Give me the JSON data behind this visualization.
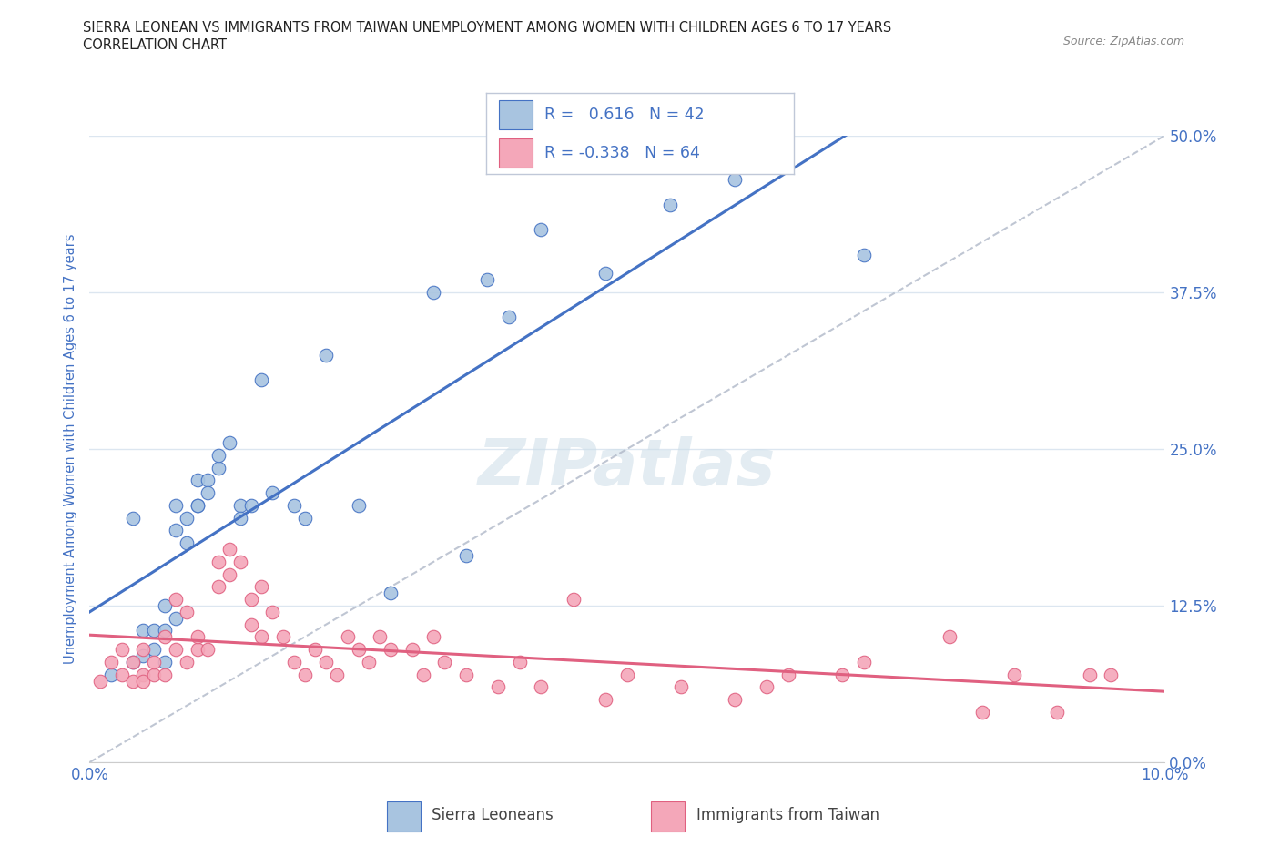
{
  "title_line1": "SIERRA LEONEAN VS IMMIGRANTS FROM TAIWAN UNEMPLOYMENT AMONG WOMEN WITH CHILDREN AGES 6 TO 17 YEARS",
  "title_line2": "CORRELATION CHART",
  "source": "Source: ZipAtlas.com",
  "ylabel": "Unemployment Among Women with Children Ages 6 to 17 years",
  "watermark": "ZIPatlas",
  "blue_R": 0.616,
  "blue_N": 42,
  "pink_R": -0.338,
  "pink_N": 64,
  "xlim": [
    0.0,
    0.1
  ],
  "ylim": [
    0.0,
    0.5
  ],
  "yticks": [
    0.0,
    0.125,
    0.25,
    0.375,
    0.5
  ],
  "ytick_labels": [
    "0.0%",
    "12.5%",
    "25.0%",
    "37.5%",
    "50.0%"
  ],
  "xticks": [
    0.0,
    0.02,
    0.04,
    0.06,
    0.08,
    0.1
  ],
  "xtick_labels": [
    "0.0%",
    "",
    "",
    "",
    "",
    "10.0%"
  ],
  "blue_color": "#a8c4e0",
  "blue_edge_color": "#4472c4",
  "pink_color": "#f4a7b9",
  "pink_edge_color": "#e06080",
  "blue_line_color": "#4472c4",
  "pink_line_color": "#e06080",
  "axis_label_color": "#4472c4",
  "grid_color": "#dce6f0",
  "diag_color": "#b0b8c8",
  "blue_scatter_x": [
    0.002,
    0.004,
    0.004,
    0.005,
    0.005,
    0.006,
    0.006,
    0.007,
    0.007,
    0.007,
    0.008,
    0.008,
    0.008,
    0.009,
    0.009,
    0.01,
    0.01,
    0.01,
    0.011,
    0.011,
    0.012,
    0.012,
    0.013,
    0.014,
    0.014,
    0.015,
    0.016,
    0.017,
    0.019,
    0.02,
    0.022,
    0.025,
    0.028,
    0.032,
    0.035,
    0.037,
    0.039,
    0.042,
    0.048,
    0.054,
    0.06,
    0.072
  ],
  "blue_scatter_y": [
    0.07,
    0.195,
    0.08,
    0.105,
    0.085,
    0.09,
    0.105,
    0.125,
    0.105,
    0.08,
    0.115,
    0.185,
    0.205,
    0.195,
    0.175,
    0.205,
    0.225,
    0.205,
    0.225,
    0.215,
    0.235,
    0.245,
    0.255,
    0.205,
    0.195,
    0.205,
    0.305,
    0.215,
    0.205,
    0.195,
    0.325,
    0.205,
    0.135,
    0.375,
    0.165,
    0.385,
    0.355,
    0.425,
    0.39,
    0.445,
    0.465,
    0.405
  ],
  "pink_scatter_x": [
    0.001,
    0.002,
    0.003,
    0.003,
    0.004,
    0.004,
    0.005,
    0.005,
    0.005,
    0.006,
    0.006,
    0.007,
    0.007,
    0.008,
    0.008,
    0.009,
    0.009,
    0.01,
    0.01,
    0.011,
    0.012,
    0.012,
    0.013,
    0.013,
    0.014,
    0.015,
    0.015,
    0.016,
    0.016,
    0.017,
    0.018,
    0.019,
    0.02,
    0.021,
    0.022,
    0.023,
    0.024,
    0.025,
    0.026,
    0.027,
    0.028,
    0.03,
    0.031,
    0.032,
    0.033,
    0.035,
    0.038,
    0.04,
    0.042,
    0.045,
    0.048,
    0.05,
    0.055,
    0.06,
    0.063,
    0.065,
    0.07,
    0.072,
    0.08,
    0.083,
    0.086,
    0.09,
    0.093,
    0.095
  ],
  "pink_scatter_y": [
    0.065,
    0.08,
    0.07,
    0.09,
    0.065,
    0.08,
    0.07,
    0.09,
    0.065,
    0.07,
    0.08,
    0.07,
    0.1,
    0.09,
    0.13,
    0.12,
    0.08,
    0.09,
    0.1,
    0.09,
    0.16,
    0.14,
    0.17,
    0.15,
    0.16,
    0.13,
    0.11,
    0.1,
    0.14,
    0.12,
    0.1,
    0.08,
    0.07,
    0.09,
    0.08,
    0.07,
    0.1,
    0.09,
    0.08,
    0.1,
    0.09,
    0.09,
    0.07,
    0.1,
    0.08,
    0.07,
    0.06,
    0.08,
    0.06,
    0.13,
    0.05,
    0.07,
    0.06,
    0.05,
    0.06,
    0.07,
    0.07,
    0.08,
    0.1,
    0.04,
    0.07,
    0.04,
    0.07,
    0.07
  ]
}
